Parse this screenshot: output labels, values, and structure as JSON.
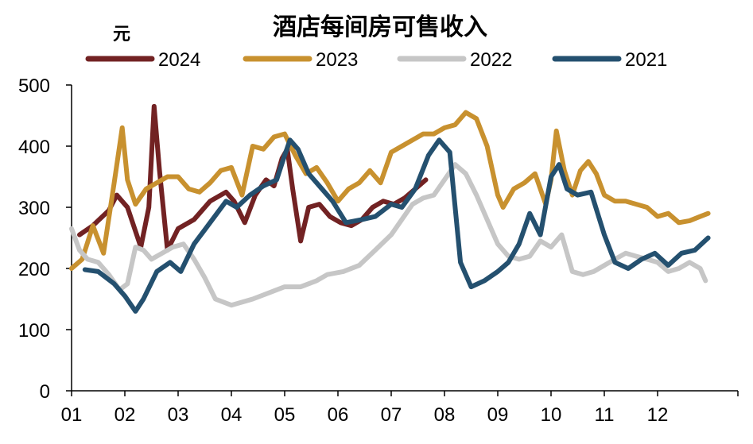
{
  "chart_data": {
    "type": "line",
    "title": "酒店每间房可售收入",
    "ylabel": "元",
    "xlabel": "",
    "ylim": [
      0,
      500
    ],
    "yticks": [
      0,
      100,
      200,
      300,
      400,
      500
    ],
    "xticks": [
      "01",
      "02",
      "03",
      "04",
      "05",
      "06",
      "07",
      "08",
      "09",
      "10",
      "11",
      "12"
    ],
    "xlim": [
      1,
      12.95
    ],
    "grid": false,
    "legend": "top",
    "series": [
      {
        "name": "2024",
        "color": "#722223",
        "x": [
          1.15,
          1.4,
          1.7,
          1.85,
          2.05,
          2.3,
          2.45,
          2.55,
          2.65,
          2.8,
          3.0,
          3.3,
          3.6,
          3.9,
          4.05,
          4.25,
          4.45,
          4.65,
          4.8,
          4.95,
          5.05,
          5.15,
          5.3,
          5.45,
          5.65,
          5.85,
          6.05,
          6.25,
          6.45,
          6.65,
          6.85,
          7.05,
          7.25,
          7.45,
          7.65
        ],
        "y": [
          255,
          270,
          295,
          320,
          300,
          235,
          300,
          465,
          360,
          230,
          265,
          280,
          310,
          325,
          310,
          275,
          320,
          345,
          335,
          380,
          395,
          330,
          245,
          300,
          305,
          285,
          275,
          270,
          280,
          300,
          310,
          305,
          315,
          330,
          345
        ]
      },
      {
        "name": "2023",
        "color": "#C8912F",
        "x": [
          1.0,
          1.2,
          1.4,
          1.6,
          1.8,
          1.95,
          2.05,
          2.2,
          2.4,
          2.6,
          2.8,
          3.0,
          3.2,
          3.4,
          3.6,
          3.8,
          4.0,
          4.2,
          4.4,
          4.6,
          4.8,
          5.0,
          5.2,
          5.4,
          5.6,
          5.8,
          6.0,
          6.2,
          6.4,
          6.6,
          6.8,
          7.0,
          7.2,
          7.4,
          7.6,
          7.8,
          8.0,
          8.2,
          8.4,
          8.6,
          8.8,
          9.0,
          9.1,
          9.3,
          9.5,
          9.7,
          9.9,
          10.0,
          10.1,
          10.25,
          10.4,
          10.55,
          10.7,
          10.85,
          11.0,
          11.2,
          11.4,
          11.6,
          11.8,
          12.0,
          12.2,
          12.4,
          12.6,
          12.8,
          12.95
        ],
        "y": [
          200,
          215,
          270,
          225,
          340,
          430,
          345,
          305,
          330,
          340,
          350,
          350,
          330,
          325,
          340,
          360,
          365,
          320,
          400,
          395,
          415,
          420,
          385,
          355,
          365,
          340,
          310,
          330,
          340,
          360,
          340,
          390,
          400,
          410,
          420,
          420,
          430,
          435,
          455,
          445,
          400,
          320,
          300,
          330,
          340,
          355,
          305,
          345,
          425,
          360,
          320,
          360,
          375,
          355,
          320,
          310,
          310,
          305,
          300,
          285,
          290,
          275,
          278,
          285,
          290
        ]
      },
      {
        "name": "2022",
        "color": "#C6C6C6",
        "x": [
          1.0,
          1.15,
          1.3,
          1.5,
          1.7,
          1.9,
          2.05,
          2.2,
          2.35,
          2.5,
          2.7,
          2.9,
          3.1,
          3.3,
          3.5,
          3.7,
          4.0,
          4.2,
          4.4,
          4.7,
          5.0,
          5.3,
          5.6,
          5.8,
          6.1,
          6.4,
          6.7,
          7.0,
          7.2,
          7.4,
          7.6,
          7.8,
          8.0,
          8.2,
          8.4,
          8.6,
          8.8,
          9.0,
          9.2,
          9.4,
          9.6,
          9.8,
          10.0,
          10.2,
          10.4,
          10.6,
          10.8,
          11.0,
          11.2,
          11.4,
          11.6,
          11.8,
          12.0,
          12.2,
          12.4,
          12.6,
          12.8,
          12.9
        ],
        "y": [
          265,
          230,
          215,
          210,
          190,
          165,
          175,
          235,
          230,
          215,
          225,
          235,
          240,
          215,
          185,
          150,
          140,
          145,
          150,
          160,
          170,
          170,
          180,
          190,
          195,
          205,
          230,
          255,
          280,
          305,
          315,
          320,
          345,
          370,
          355,
          320,
          280,
          240,
          220,
          215,
          220,
          245,
          235,
          255,
          195,
          190,
          195,
          205,
          215,
          225,
          220,
          215,
          210,
          195,
          200,
          210,
          200,
          180
        ]
      },
      {
        "name": "2021",
        "color": "#24506F",
        "x": [
          1.25,
          1.5,
          1.8,
          2.0,
          2.2,
          2.35,
          2.6,
          2.85,
          3.05,
          3.3,
          3.6,
          3.9,
          4.1,
          4.35,
          4.6,
          4.85,
          5.0,
          5.1,
          5.25,
          5.45,
          5.7,
          5.9,
          6.15,
          6.45,
          6.7,
          7.0,
          7.2,
          7.45,
          7.7,
          7.9,
          8.1,
          8.3,
          8.5,
          8.75,
          9.0,
          9.2,
          9.4,
          9.6,
          9.8,
          10.0,
          10.15,
          10.3,
          10.5,
          10.75,
          11.0,
          11.2,
          11.45,
          11.7,
          11.95,
          12.2,
          12.45,
          12.7,
          12.95
        ],
        "y": [
          198,
          195,
          175,
          155,
          130,
          150,
          195,
          210,
          195,
          240,
          275,
          310,
          300,
          320,
          335,
          345,
          385,
          410,
          395,
          355,
          330,
          310,
          275,
          280,
          285,
          305,
          300,
          330,
          385,
          410,
          390,
          210,
          170,
          180,
          195,
          210,
          240,
          290,
          255,
          350,
          370,
          330,
          320,
          325,
          255,
          210,
          200,
          215,
          225,
          205,
          225,
          230,
          250
        ]
      }
    ]
  }
}
